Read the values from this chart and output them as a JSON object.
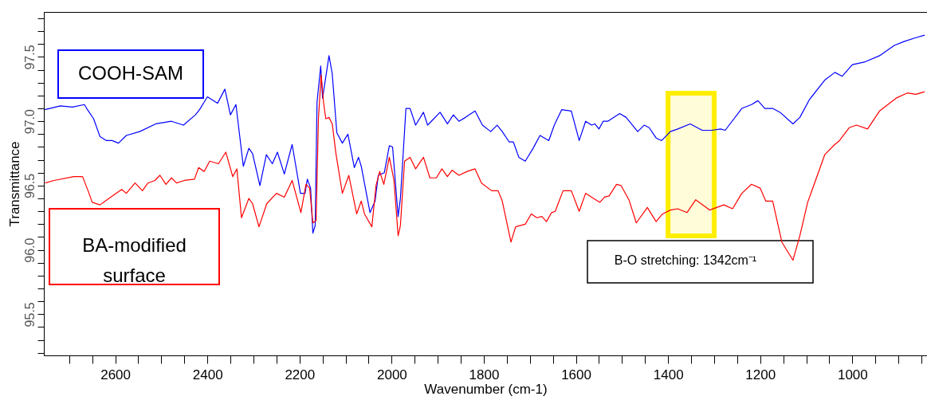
{
  "chart_data": {
    "type": "line",
    "xlabel": "Wavenumber (cm-1)",
    "ylabel": "Transmittance",
    "xlim": [
      2755,
      838
    ],
    "ylim": [
      95.18,
      97.85
    ],
    "xticks": [
      {
        "value": 2700,
        "label": null
      },
      {
        "value": 2650,
        "label": null
      },
      2600,
      {
        "value": 2550,
        "label": null
      },
      {
        "value": 2500,
        "label": null
      },
      {
        "value": 2450,
        "label": null
      },
      2400,
      {
        "value": 2350,
        "label": null
      },
      {
        "value": 2300,
        "label": null
      },
      {
        "value": 2250,
        "label": null
      },
      2200,
      {
        "value": 2150,
        "label": null
      },
      {
        "value": 2100,
        "label": null
      },
      {
        "value": 2050,
        "label": null
      },
      2000,
      {
        "value": 1950,
        "label": null
      },
      {
        "value": 1900,
        "label": null
      },
      {
        "value": 1850,
        "label": null
      },
      1800,
      {
        "value": 1750,
        "label": null
      },
      {
        "value": 1700,
        "label": null
      },
      {
        "value": 1650,
        "label": null
      },
      1600,
      {
        "value": 1550,
        "label": null
      },
      {
        "value": 1500,
        "label": null
      },
      {
        "value": 1450,
        "label": null
      },
      1400,
      {
        "value": 1350,
        "label": null
      },
      {
        "value": 1300,
        "label": null
      },
      {
        "value": 1250,
        "label": null
      },
      1200,
      {
        "value": 1150,
        "label": null
      },
      {
        "value": 1100,
        "label": null
      },
      {
        "value": 1050,
        "label": null
      },
      1000,
      {
        "value": 950,
        "label": null
      },
      {
        "value": 900,
        "label": null
      },
      {
        "value": 850,
        "label": null
      }
    ],
    "yticks": [
      {
        "value": 95.2,
        "label": null
      },
      {
        "value": 95.3,
        "label": null
      },
      {
        "value": 95.4,
        "label": null
      },
      95.5,
      {
        "value": 95.6,
        "label": null
      },
      {
        "value": 95.7,
        "label": null
      },
      {
        "value": 95.8,
        "label": null
      },
      {
        "value": 95.9,
        "label": null
      },
      {
        "value": 96.0,
        "label": "96.0"
      },
      {
        "value": 96.1,
        "label": null
      },
      {
        "value": 96.2,
        "label": null
      },
      {
        "value": 96.3,
        "label": null
      },
      {
        "value": 96.4,
        "label": null
      },
      96.5,
      {
        "value": 96.6,
        "label": null
      },
      {
        "value": 96.7,
        "label": null
      },
      {
        "value": 96.8,
        "label": null
      },
      {
        "value": 96.9,
        "label": null
      },
      {
        "value": 97.0,
        "label": "97.0"
      },
      {
        "value": 97.1,
        "label": null
      },
      {
        "value": 97.2,
        "label": null
      },
      {
        "value": 97.3,
        "label": null
      },
      {
        "value": 97.4,
        "label": null
      },
      97.5,
      {
        "value": 97.6,
        "label": null
      },
      {
        "value": 97.7,
        "label": null
      },
      {
        "value": 97.8,
        "label": null
      }
    ],
    "marker": "none",
    "line_style": "solid",
    "bands": [
      {
        "axis": "x",
        "from": 1400,
        "to": 1300,
        "color": "#ffee00"
      }
    ],
    "annotations": [
      "B-O stretching: 1342cm⁻¹"
    ],
    "series": [
      {
        "name": "COOH-SAM",
        "color": "#0000ff",
        "x": [
          2753,
          2719,
          2693,
          2667,
          2662,
          2647,
          2633,
          2619,
          2607,
          2593,
          2576,
          2547,
          2512,
          2478,
          2452,
          2426,
          2417,
          2400,
          2378,
          2362,
          2350,
          2338,
          2322,
          2310,
          2302,
          2286,
          2272,
          2259,
          2248,
          2233,
          2216,
          2198,
          2188,
          2183,
          2176,
          2171,
          2166,
          2162,
          2154,
          2150,
          2136,
          2129,
          2119,
          2107,
          2095,
          2081,
          2072,
          2066,
          2047,
          2036,
          2029,
          2016,
          2005,
          1998,
          1986,
          1981,
          1969,
          1960,
          1948,
          1931,
          1922,
          1914,
          1895,
          1879,
          1866,
          1854,
          1840,
          1819,
          1803,
          1785,
          1771,
          1760,
          1745,
          1736,
          1724,
          1710,
          1693,
          1678,
          1659,
          1647,
          1631,
          1610,
          1593,
          1579,
          1566,
          1559,
          1550,
          1541,
          1531,
          1505,
          1491,
          1466,
          1452,
          1441,
          1426,
          1414,
          1395,
          1379,
          1352,
          1326,
          1305,
          1286,
          1276,
          1240,
          1219,
          1205,
          1190,
          1173,
          1157,
          1129,
          1114,
          1093,
          1060,
          1038,
          1022,
          1000,
          974,
          941,
          909,
          888,
          862,
          843
        ],
        "values": [
          97.09,
          97.12,
          97.11,
          97.13,
          97.1,
          97.02,
          96.88,
          96.85,
          96.85,
          96.83,
          96.89,
          96.92,
          96.98,
          97.0,
          96.97,
          97.05,
          97.09,
          97.19,
          97.14,
          97.25,
          97.05,
          97.13,
          96.65,
          96.79,
          96.75,
          96.5,
          96.74,
          96.67,
          96.76,
          96.59,
          96.82,
          96.44,
          96.44,
          96.55,
          96.48,
          96.13,
          96.19,
          97.15,
          97.43,
          97.18,
          97.51,
          97.37,
          96.91,
          96.83,
          96.9,
          96.64,
          96.72,
          96.65,
          96.29,
          96.38,
          96.58,
          96.6,
          96.81,
          96.8,
          96.26,
          96.4,
          97.1,
          97.1,
          96.97,
          97.07,
          96.97,
          97.0,
          97.07,
          96.98,
          97.05,
          97.0,
          97.03,
          97.08,
          96.97,
          96.92,
          96.97,
          96.92,
          96.84,
          96.84,
          96.72,
          96.69,
          96.79,
          96.89,
          96.85,
          96.97,
          97.09,
          97.08,
          96.85,
          97.0,
          96.97,
          96.98,
          96.94,
          97.0,
          97.0,
          97.06,
          97.03,
          96.92,
          96.97,
          96.95,
          96.87,
          96.85,
          96.92,
          96.94,
          96.98,
          96.93,
          96.93,
          96.94,
          96.93,
          97.1,
          97.13,
          97.16,
          97.1,
          97.1,
          97.07,
          96.98,
          97.03,
          97.17,
          97.32,
          97.38,
          97.35,
          97.44,
          97.46,
          97.51,
          97.59,
          97.62,
          97.65,
          97.67
        ]
      },
      {
        "name": "BA-modified surface",
        "color": "#ff0000",
        "x": [
          2752,
          2733,
          2690,
          2671,
          2659,
          2650,
          2633,
          2610,
          2586,
          2576,
          2557,
          2541,
          2529,
          2514,
          2503,
          2490,
          2478,
          2467,
          2450,
          2428,
          2419,
          2407,
          2395,
          2376,
          2360,
          2345,
          2336,
          2326,
          2310,
          2302,
          2288,
          2271,
          2250,
          2233,
          2216,
          2197,
          2186,
          2178,
          2171,
          2164,
          2159,
          2153,
          2148,
          2143,
          2136,
          2129,
          2121,
          2107,
          2093,
          2076,
          2066,
          2059,
          2043,
          2034,
          2026,
          2017,
          2005,
          1995,
          1986,
          1981,
          1972,
          1960,
          1948,
          1931,
          1917,
          1903,
          1891,
          1879,
          1869,
          1854,
          1836,
          1819,
          1805,
          1783,
          1769,
          1760,
          1741,
          1731,
          1710,
          1697,
          1685,
          1674,
          1664,
          1653,
          1645,
          1628,
          1610,
          1593,
          1579,
          1566,
          1548,
          1538,
          1528,
          1512,
          1502,
          1485,
          1469,
          1445,
          1426,
          1412,
          1395,
          1379,
          1359,
          1340,
          1310,
          1279,
          1260,
          1240,
          1219,
          1200,
          1188,
          1173,
          1153,
          1129,
          1114,
          1097,
          1060,
          1038,
          1028,
          1007,
          991,
          967,
          941,
          905,
          881,
          862,
          843
        ],
        "values": [
          96.52,
          96.54,
          96.57,
          96.57,
          96.46,
          96.37,
          96.35,
          96.41,
          96.47,
          96.44,
          96.52,
          96.46,
          96.52,
          96.54,
          96.58,
          96.51,
          96.56,
          96.52,
          96.54,
          96.55,
          96.64,
          96.61,
          96.69,
          96.67,
          96.76,
          96.57,
          96.63,
          96.25,
          96.4,
          96.36,
          96.18,
          96.36,
          96.44,
          96.41,
          96.54,
          96.29,
          96.51,
          96.48,
          96.21,
          96.23,
          97.02,
          97.36,
          97.15,
          97.02,
          97.03,
          96.98,
          96.75,
          96.44,
          96.58,
          96.28,
          96.38,
          96.28,
          96.18,
          96.5,
          96.61,
          96.51,
          96.72,
          96.54,
          96.11,
          96.19,
          96.69,
          96.72,
          96.63,
          96.72,
          96.56,
          96.56,
          96.63,
          96.57,
          96.62,
          96.58,
          96.61,
          96.63,
          96.52,
          96.46,
          96.46,
          96.38,
          96.06,
          96.18,
          96.2,
          96.28,
          96.25,
          96.26,
          96.22,
          96.29,
          96.3,
          96.46,
          96.46,
          96.3,
          96.44,
          96.41,
          96.37,
          96.41,
          96.42,
          96.51,
          96.5,
          96.39,
          96.21,
          96.33,
          96.22,
          96.28,
          96.31,
          96.32,
          96.29,
          96.39,
          96.31,
          96.35,
          96.32,
          96.44,
          96.51,
          96.48,
          96.38,
          96.38,
          96.06,
          95.92,
          96.11,
          96.37,
          96.74,
          96.82,
          96.85,
          96.95,
          96.97,
          96.94,
          97.08,
          97.18,
          97.22,
          97.21,
          97.23
        ]
      }
    ]
  }
}
